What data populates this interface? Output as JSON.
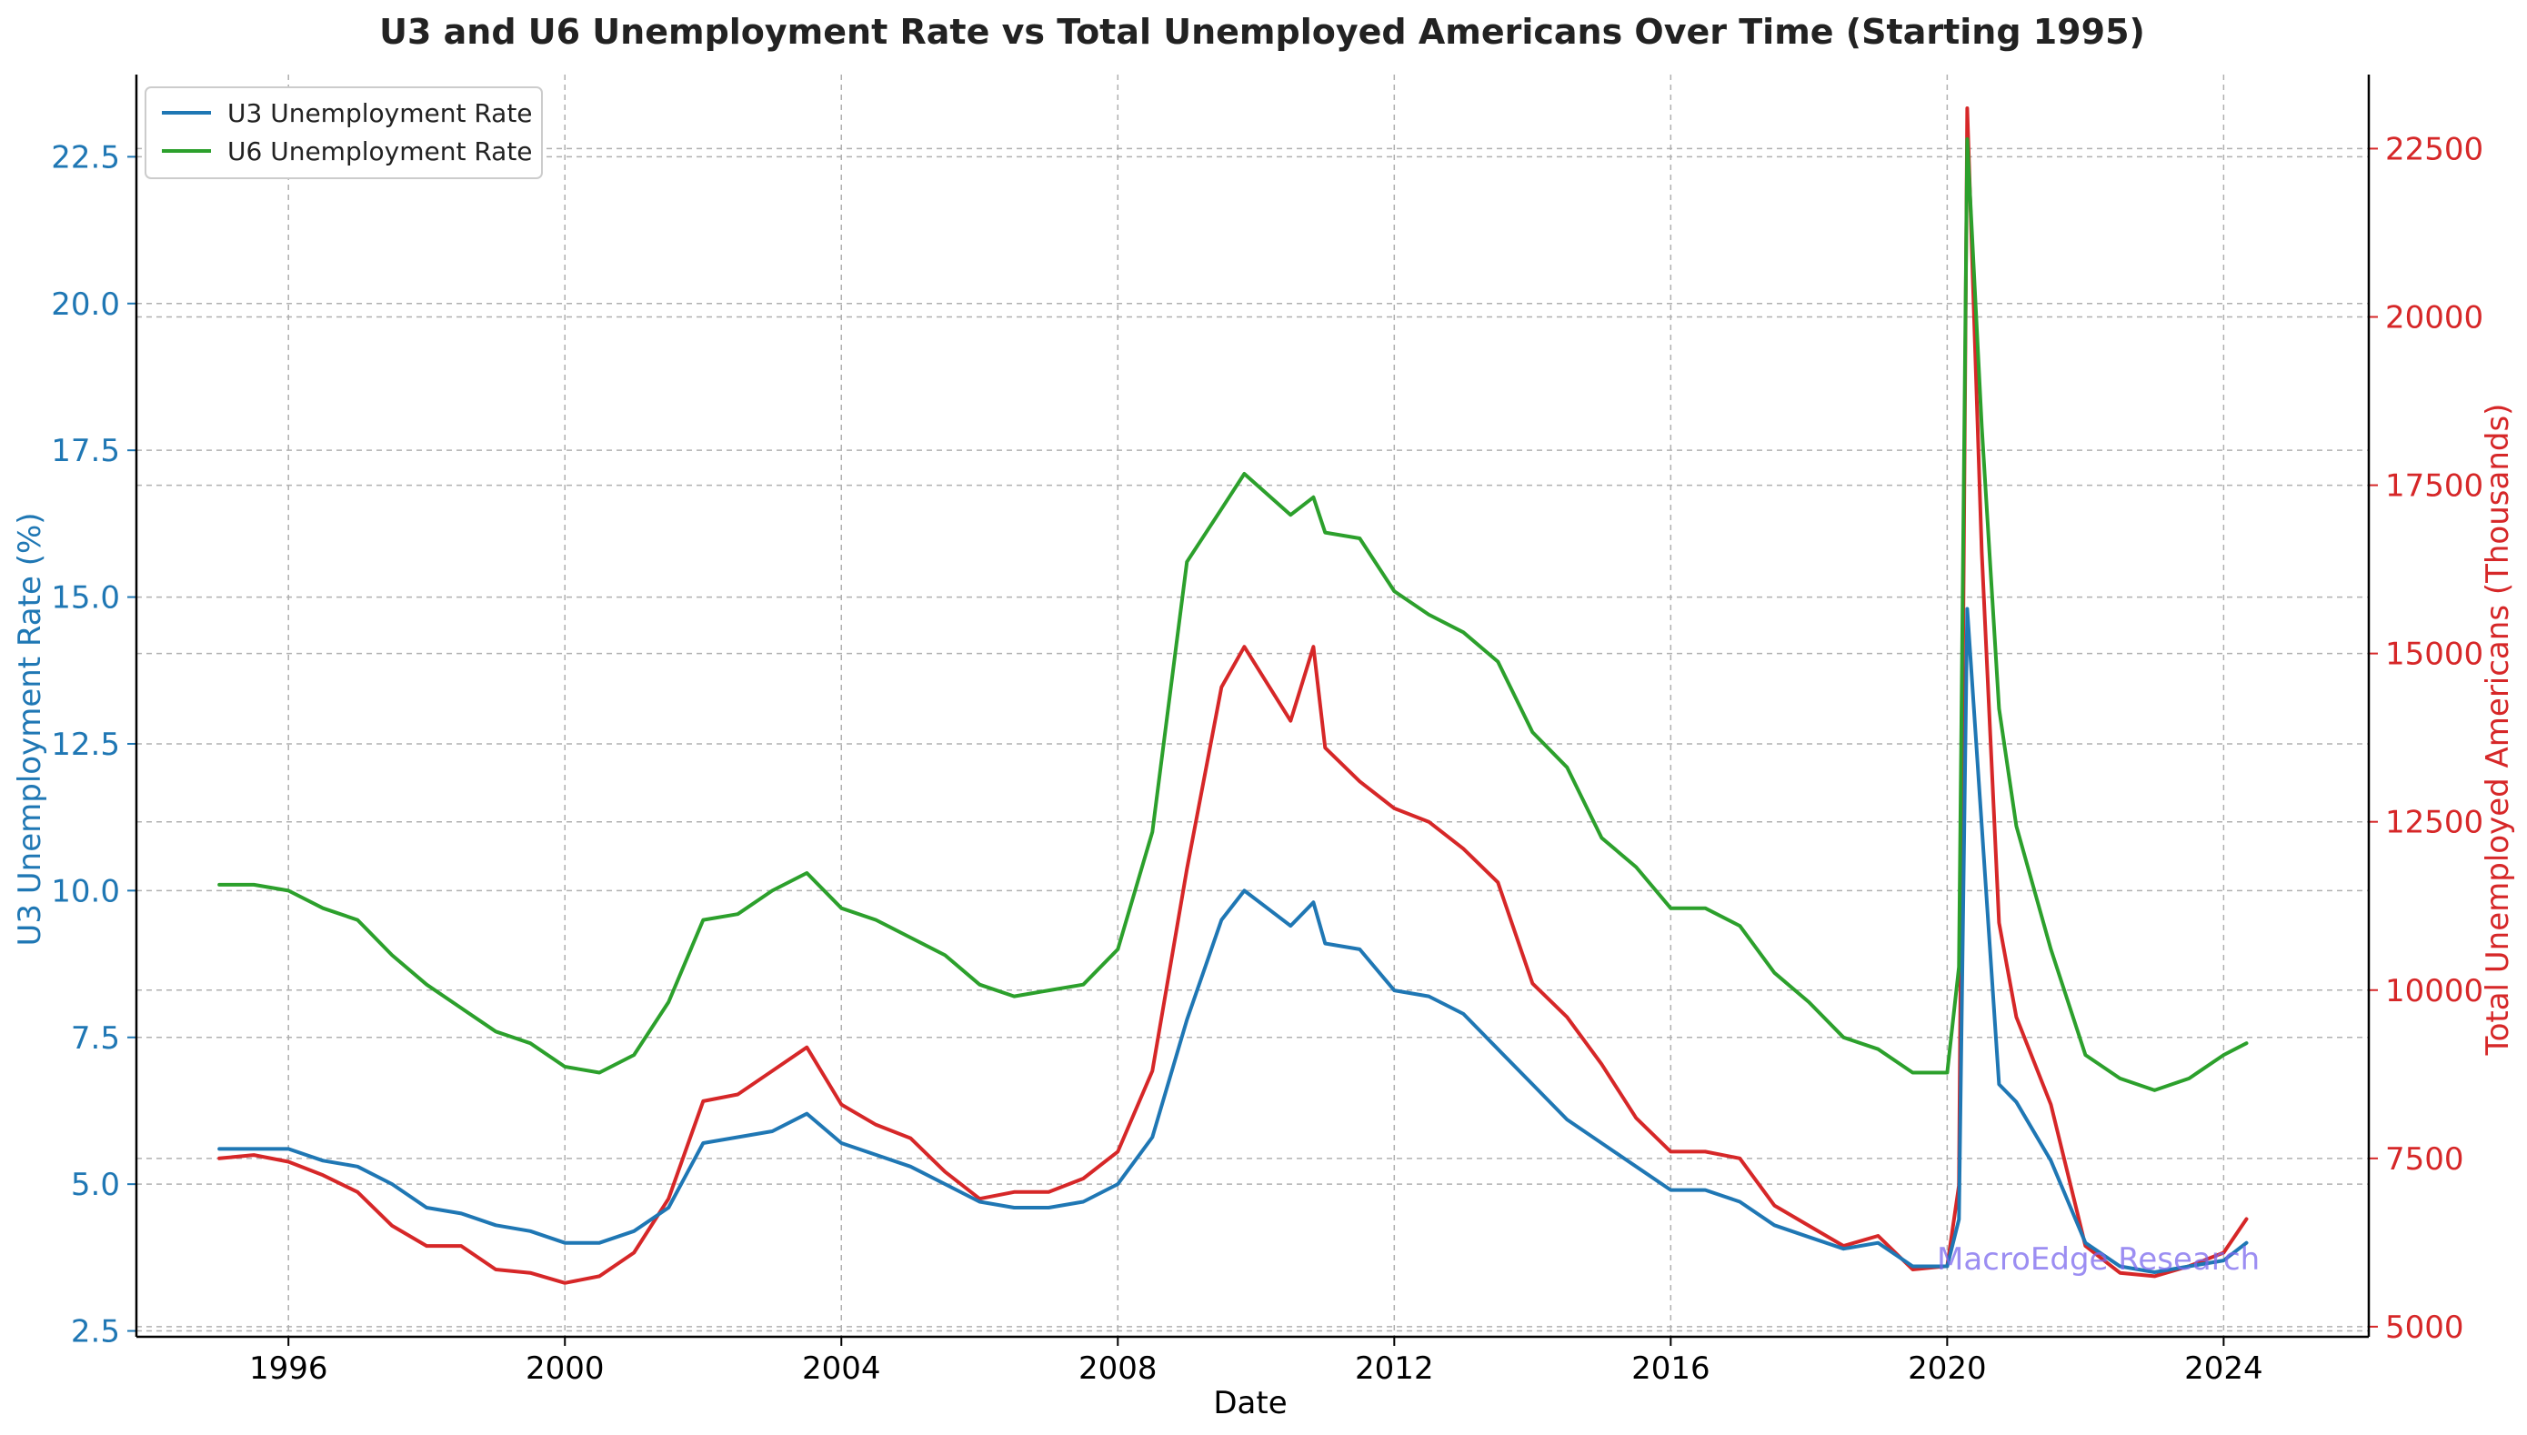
{
  "chart_data": {
    "type": "line",
    "title": "U3 and U6 Unemployment Rate vs Total Unemployed Americans Over Time (Starting 1995)",
    "xlabel": "Date",
    "ylabel": "U3 Unemployment Rate (%)",
    "y2label": "Total Unemployed Americans (Thousands)",
    "xlim": [
      1993.8,
      2026.1
    ],
    "ylim": [
      2.4,
      23.9
    ],
    "y2lim": [
      4850,
      23600
    ],
    "xticks": [
      "1996",
      "2000",
      "2004",
      "2008",
      "2012",
      "2016",
      "2020",
      "2024"
    ],
    "yticks": [
      "2.5",
      "5.0",
      "7.5",
      "10.0",
      "12.5",
      "15.0",
      "17.5",
      "20.0",
      "22.5"
    ],
    "y2ticks": [
      "5000",
      "7500",
      "10000",
      "12500",
      "15000",
      "17500",
      "20000",
      "22500"
    ],
    "grid": true,
    "legend_position": "top-left",
    "watermark": "MacroEdge Research",
    "colors": {
      "u3": "#1f77b4",
      "u6": "#2ca02c",
      "total": "#d62728",
      "watermark": "#7b68ee",
      "grid": "#b0b0b0"
    },
    "series": [
      {
        "name": "U3 Unemployment Rate",
        "axis": "left",
        "x": [
          1995.0,
          1995.5,
          1996.0,
          1996.5,
          1997.0,
          1997.5,
          1998.0,
          1998.5,
          1999.0,
          1999.5,
          2000.0,
          2000.5,
          2001.0,
          2001.5,
          2002.0,
          2002.5,
          2003.0,
          2003.5,
          2004.0,
          2004.5,
          2005.0,
          2005.5,
          2006.0,
          2006.5,
          2007.0,
          2007.5,
          2008.0,
          2008.5,
          2009.0,
          2009.5,
          2009.83,
          2010.5,
          2010.83,
          2011.0,
          2011.5,
          2012.0,
          2012.5,
          2013.0,
          2013.5,
          2014.0,
          2014.5,
          2015.0,
          2015.5,
          2016.0,
          2016.5,
          2017.0,
          2017.5,
          2018.0,
          2018.5,
          2019.0,
          2019.5,
          2020.0,
          2020.17,
          2020.29,
          2020.5,
          2020.75,
          2021.0,
          2021.5,
          2022.0,
          2022.5,
          2023.0,
          2023.5,
          2024.0,
          2024.33
        ],
        "values": [
          5.6,
          5.6,
          5.6,
          5.4,
          5.3,
          5.0,
          4.6,
          4.5,
          4.3,
          4.2,
          4.0,
          4.0,
          4.2,
          4.6,
          5.7,
          5.8,
          5.9,
          6.2,
          5.7,
          5.5,
          5.3,
          5.0,
          4.7,
          4.6,
          4.6,
          4.7,
          5.0,
          5.8,
          7.8,
          9.5,
          10.0,
          9.4,
          9.8,
          9.1,
          9.0,
          8.3,
          8.2,
          7.9,
          7.3,
          6.7,
          6.1,
          5.7,
          5.3,
          4.9,
          4.9,
          4.7,
          4.3,
          4.1,
          3.9,
          4.0,
          3.6,
          3.6,
          4.4,
          14.8,
          11.1,
          6.7,
          6.4,
          5.4,
          4.0,
          3.6,
          3.5,
          3.6,
          3.7,
          4.0
        ]
      },
      {
        "name": "U6 Unemployment Rate",
        "axis": "left",
        "x": [
          1995.0,
          1995.5,
          1996.0,
          1996.5,
          1997.0,
          1997.5,
          1998.0,
          1998.5,
          1999.0,
          1999.5,
          2000.0,
          2000.5,
          2001.0,
          2001.5,
          2002.0,
          2002.5,
          2003.0,
          2003.5,
          2004.0,
          2004.5,
          2005.0,
          2005.5,
          2006.0,
          2006.5,
          2007.0,
          2007.5,
          2008.0,
          2008.5,
          2009.0,
          2009.5,
          2009.83,
          2010.5,
          2010.83,
          2011.0,
          2011.5,
          2012.0,
          2012.5,
          2013.0,
          2013.5,
          2014.0,
          2014.5,
          2015.0,
          2015.5,
          2016.0,
          2016.5,
          2017.0,
          2017.5,
          2018.0,
          2018.5,
          2019.0,
          2019.5,
          2020.0,
          2020.17,
          2020.29,
          2020.5,
          2020.75,
          2021.0,
          2021.5,
          2022.0,
          2022.5,
          2023.0,
          2023.5,
          2024.0,
          2024.33
        ],
        "values": [
          10.1,
          10.1,
          10.0,
          9.7,
          9.5,
          8.9,
          8.4,
          8.0,
          7.6,
          7.4,
          7.0,
          6.9,
          7.2,
          8.1,
          9.5,
          9.6,
          10.0,
          10.3,
          9.7,
          9.5,
          9.2,
          8.9,
          8.4,
          8.2,
          8.3,
          8.4,
          9.0,
          11.0,
          15.6,
          16.5,
          17.1,
          16.4,
          16.7,
          16.1,
          16.0,
          15.1,
          14.7,
          14.4,
          13.9,
          12.7,
          12.1,
          10.9,
          10.4,
          9.7,
          9.7,
          9.4,
          8.6,
          8.1,
          7.5,
          7.3,
          6.9,
          6.9,
          8.7,
          22.8,
          17.9,
          13.1,
          11.1,
          9.0,
          7.2,
          6.8,
          6.6,
          6.8,
          7.2,
          7.4
        ]
      },
      {
        "name": "Total Unemployed Americans",
        "axis": "right",
        "x": [
          1995.0,
          1995.5,
          1996.0,
          1996.5,
          1997.0,
          1997.5,
          1998.0,
          1998.5,
          1999.0,
          1999.5,
          2000.0,
          2000.5,
          2001.0,
          2001.5,
          2002.0,
          2002.5,
          2003.0,
          2003.5,
          2004.0,
          2004.5,
          2005.0,
          2005.5,
          2006.0,
          2006.5,
          2007.0,
          2007.5,
          2008.0,
          2008.5,
          2009.0,
          2009.5,
          2009.83,
          2010.5,
          2010.83,
          2011.0,
          2011.5,
          2012.0,
          2012.5,
          2013.0,
          2013.5,
          2014.0,
          2014.5,
          2015.0,
          2015.5,
          2016.0,
          2016.5,
          2017.0,
          2017.5,
          2018.0,
          2018.5,
          2019.0,
          2019.5,
          2020.0,
          2020.17,
          2020.29,
          2020.5,
          2020.75,
          2021.0,
          2021.5,
          2022.0,
          2022.5,
          2023.0,
          2023.5,
          2024.0,
          2024.33
        ],
        "values": [
          7500,
          7550,
          7450,
          7250,
          7000,
          6500,
          6200,
          6200,
          5850,
          5800,
          5650,
          5750,
          6100,
          6900,
          8350,
          8450,
          8800,
          9150,
          8300,
          8000,
          7800,
          7300,
          6900,
          7000,
          7000,
          7200,
          7600,
          8800,
          11800,
          14500,
          15100,
          14000,
          15100,
          13600,
          13100,
          12700,
          12500,
          12100,
          11600,
          10100,
          9600,
          8900,
          8100,
          7600,
          7600,
          7500,
          6800,
          6500,
          6200,
          6350,
          5850,
          5900,
          7100,
          23100,
          16500,
          11000,
          9600,
          8300,
          6200,
          5800,
          5750,
          5900,
          6100,
          6600
        ]
      }
    ]
  }
}
